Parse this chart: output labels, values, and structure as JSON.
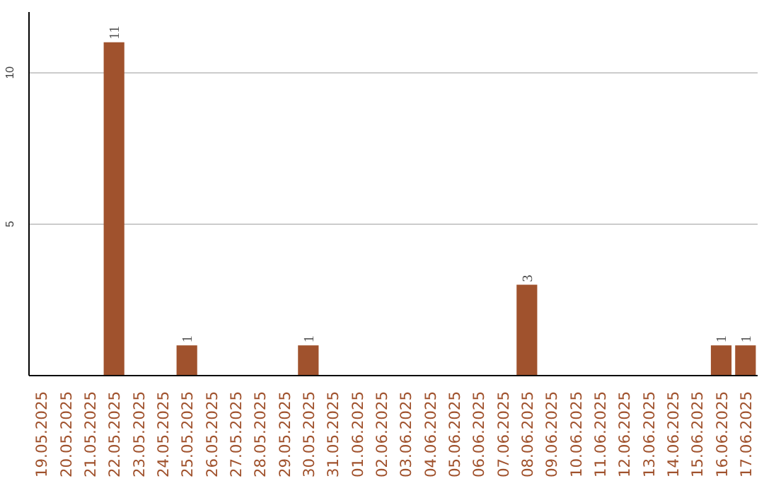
{
  "chart_data": {
    "type": "bar",
    "categories": [
      "19.05.2025",
      "20.05.2025",
      "21.05.2025",
      "22.05.2025",
      "23.05.2025",
      "24.05.2025",
      "25.05.2025",
      "26.05.2025",
      "27.05.2025",
      "28.05.2025",
      "29.05.2025",
      "30.05.2025",
      "31.05.2025",
      "01.06.2025",
      "02.06.2025",
      "03.06.2025",
      "04.06.2025",
      "05.06.2025",
      "06.06.2025",
      "07.06.2025",
      "08.06.2025",
      "09.06.2025",
      "10.06.2025",
      "11.06.2025",
      "12.06.2025",
      "13.06.2025",
      "14.06.2025",
      "15.06.2025",
      "16.06.2025",
      "17.06.2025"
    ],
    "values": [
      0,
      0,
      0,
      11,
      0,
      0,
      1,
      0,
      0,
      0,
      0,
      1,
      0,
      0,
      0,
      0,
      0,
      0,
      0,
      0,
      3,
      0,
      0,
      0,
      0,
      0,
      0,
      0,
      1,
      1
    ],
    "value_labels": [
      null,
      null,
      null,
      "11",
      null,
      null,
      "1",
      null,
      null,
      null,
      null,
      "1",
      null,
      null,
      null,
      null,
      null,
      null,
      null,
      null,
      "3",
      null,
      null,
      null,
      null,
      null,
      null,
      null,
      "1",
      "1"
    ],
    "color": "#a0522d",
    "ylim": [
      0,
      12
    ],
    "yticks": [
      5,
      10
    ],
    "grid": "y"
  }
}
